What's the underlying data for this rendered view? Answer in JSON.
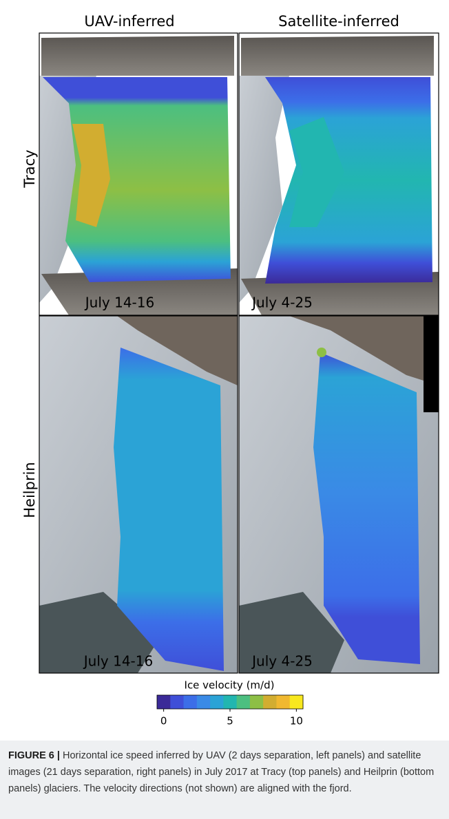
{
  "column_titles": [
    "UAV-inferred",
    "Satellite-inferred"
  ],
  "row_labels": [
    "Tracy",
    "Heilprin"
  ],
  "panel_dates": [
    [
      "July 14-16",
      "July 4-25"
    ],
    [
      "July 14-16",
      "July 4-25"
    ]
  ],
  "colorbar": {
    "label": "Ice velocity (m/d)",
    "lim": [
      -0.5,
      10.5
    ],
    "ticks": [
      0,
      5,
      10
    ],
    "colors": [
      "#3b2a98",
      "#3f4fd8",
      "#3c6ee8",
      "#3a8ae6",
      "#2ba3d6",
      "#22b6b0",
      "#4cbf80",
      "#8dbf45",
      "#d2ad30",
      "#f0b830",
      "#f8e81e"
    ]
  },
  "caption": {
    "label": "FIGURE 6 |",
    "text": "Horizontal ice speed inferred by UAV (2 days separation, left panels) and satellite images (21 days separation, right panels) in July 2017 at Tracy (top panels) and Heilprin (bottom panels) glaciers. The velocity directions (not shown) are aligned with the fjord."
  }
}
